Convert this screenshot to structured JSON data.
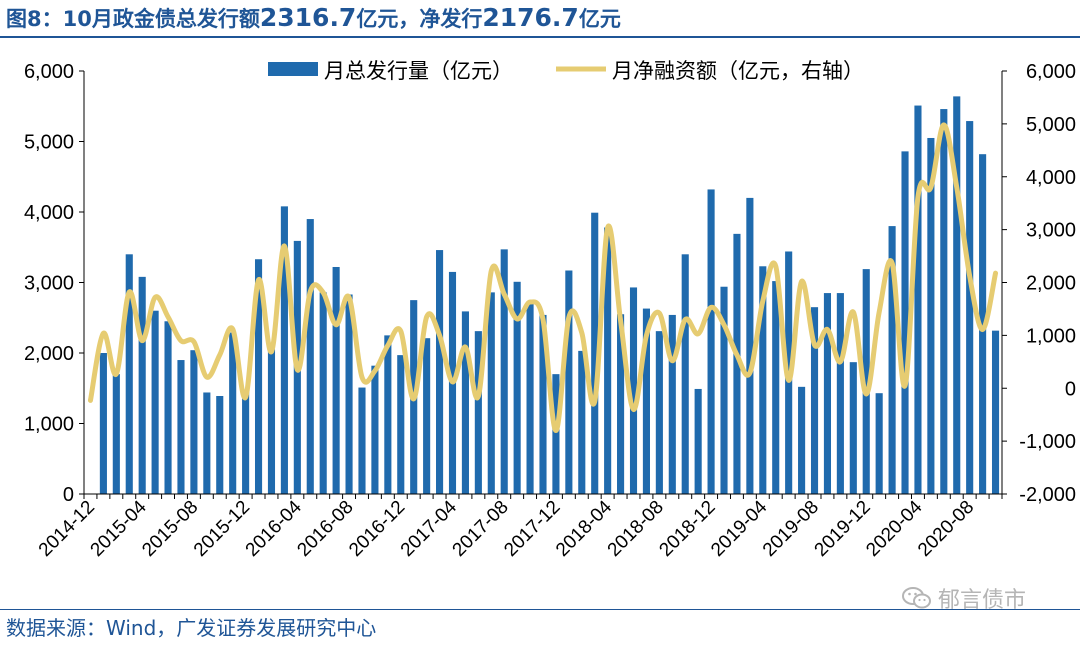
{
  "title": {
    "prefix": "图8：",
    "p1": "10月政金债总发行额",
    "v1": "2316.7",
    "p2": "亿元，净发行",
    "v2": "2176.7",
    "p3": "亿元"
  },
  "source": "数据来源：Wind，广发证券发展研究中心",
  "watermark": "郁言债市",
  "colors": {
    "bar": "#1f6aad",
    "line": "#e6cc72",
    "text": "#1f5596",
    "axis": "#000000"
  },
  "chart_data": {
    "type": "bar",
    "title": "",
    "legend_position": "top-center",
    "grid": false,
    "categories": [
      "2014-12",
      "2015-01",
      "2015-02",
      "2015-03",
      "2015-04",
      "2015-05",
      "2015-06",
      "2015-07",
      "2015-08",
      "2015-09",
      "2015-10",
      "2015-11",
      "2015-12",
      "2016-01",
      "2016-02",
      "2016-03",
      "2016-04",
      "2016-05",
      "2016-06",
      "2016-07",
      "2016-08",
      "2016-09",
      "2016-10",
      "2016-11",
      "2016-12",
      "2017-01",
      "2017-02",
      "2017-03",
      "2017-04",
      "2017-05",
      "2017-06",
      "2017-07",
      "2017-08",
      "2017-09",
      "2017-10",
      "2017-11",
      "2017-12",
      "2018-01",
      "2018-02",
      "2018-03",
      "2018-04",
      "2018-05",
      "2018-06",
      "2018-07",
      "2018-08",
      "2018-09",
      "2018-10",
      "2018-11",
      "2018-12",
      "2019-01",
      "2019-02",
      "2019-03",
      "2019-04",
      "2019-05",
      "2019-06",
      "2019-07",
      "2019-08",
      "2019-09",
      "2019-10",
      "2019-11",
      "2019-12",
      "2020-01",
      "2020-02",
      "2020-03",
      "2020-04",
      "2020-05",
      "2020-06",
      "2020-07",
      "2020-08",
      "2020-09",
      "2020-10"
    ],
    "x_tick_labels": [
      "2014-12",
      "2015-04",
      "2015-08",
      "2015-12",
      "2016-04",
      "2016-08",
      "2016-12",
      "2017-04",
      "2017-08",
      "2017-12",
      "2018-04",
      "2018-08",
      "2018-12",
      "2019-04",
      "2019-08",
      "2019-12",
      "2020-04",
      "2020-08"
    ],
    "y_left": {
      "ylim": [
        0,
        6000
      ],
      "ticks": [
        "0",
        "1,000",
        "2,000",
        "3,000",
        "4,000",
        "5,000",
        "6,000"
      ]
    },
    "y_right": {
      "ylim": [
        -2000,
        6000
      ],
      "ticks": [
        "-2,000",
        "-1,000",
        "0",
        "1,000",
        "2,000",
        "3,000",
        "4,000",
        "5,000",
        "6,000"
      ]
    },
    "series": [
      {
        "name": "月总发行量（亿元）",
        "type": "bar",
        "axis": "left",
        "values": [
          0,
          2000,
          1700,
          3400,
          3080,
          2600,
          2450,
          1900,
          2040,
          1440,
          1390,
          2290,
          1450,
          3330,
          2050,
          4080,
          3590,
          3900,
          2860,
          3220,
          2830,
          1510,
          1820,
          2250,
          1970,
          2750,
          2210,
          3460,
          3150,
          2590,
          2310,
          2860,
          3470,
          3010,
          2720,
          2540,
          1700,
          3170,
          2030,
          3990,
          3780,
          2550,
          2930,
          2630,
          2310,
          2540,
          3400,
          1490,
          4320,
          2940,
          3690,
          4200,
          3230,
          3020,
          3440,
          1520,
          2650,
          2850,
          2850,
          1870,
          3190,
          1430,
          3800,
          4860,
          5510,
          5050,
          5460,
          5640,
          5290,
          4820,
          2317
        ]
      },
      {
        "name": "月净融资额（亿元，右轴）",
        "type": "line",
        "axis": "right",
        "values": [
          -230,
          1040,
          270,
          1820,
          900,
          1720,
          1350,
          900,
          880,
          210,
          630,
          1120,
          -170,
          2050,
          690,
          2690,
          350,
          1830,
          1810,
          1200,
          1720,
          210,
          330,
          810,
          1080,
          -200,
          1350,
          1000,
          120,
          780,
          -150,
          2220,
          1780,
          1310,
          1630,
          1300,
          -800,
          1340,
          1050,
          -250,
          3040,
          1280,
          -400,
          1000,
          1420,
          520,
          1300,
          1030,
          1530,
          1200,
          630,
          290,
          1650,
          2310,
          150,
          2020,
          820,
          1110,
          500,
          1440,
          -110,
          1440,
          2370,
          50,
          3620,
          3800,
          4980,
          3800,
          2120,
          1110,
          2177
        ]
      }
    ]
  }
}
